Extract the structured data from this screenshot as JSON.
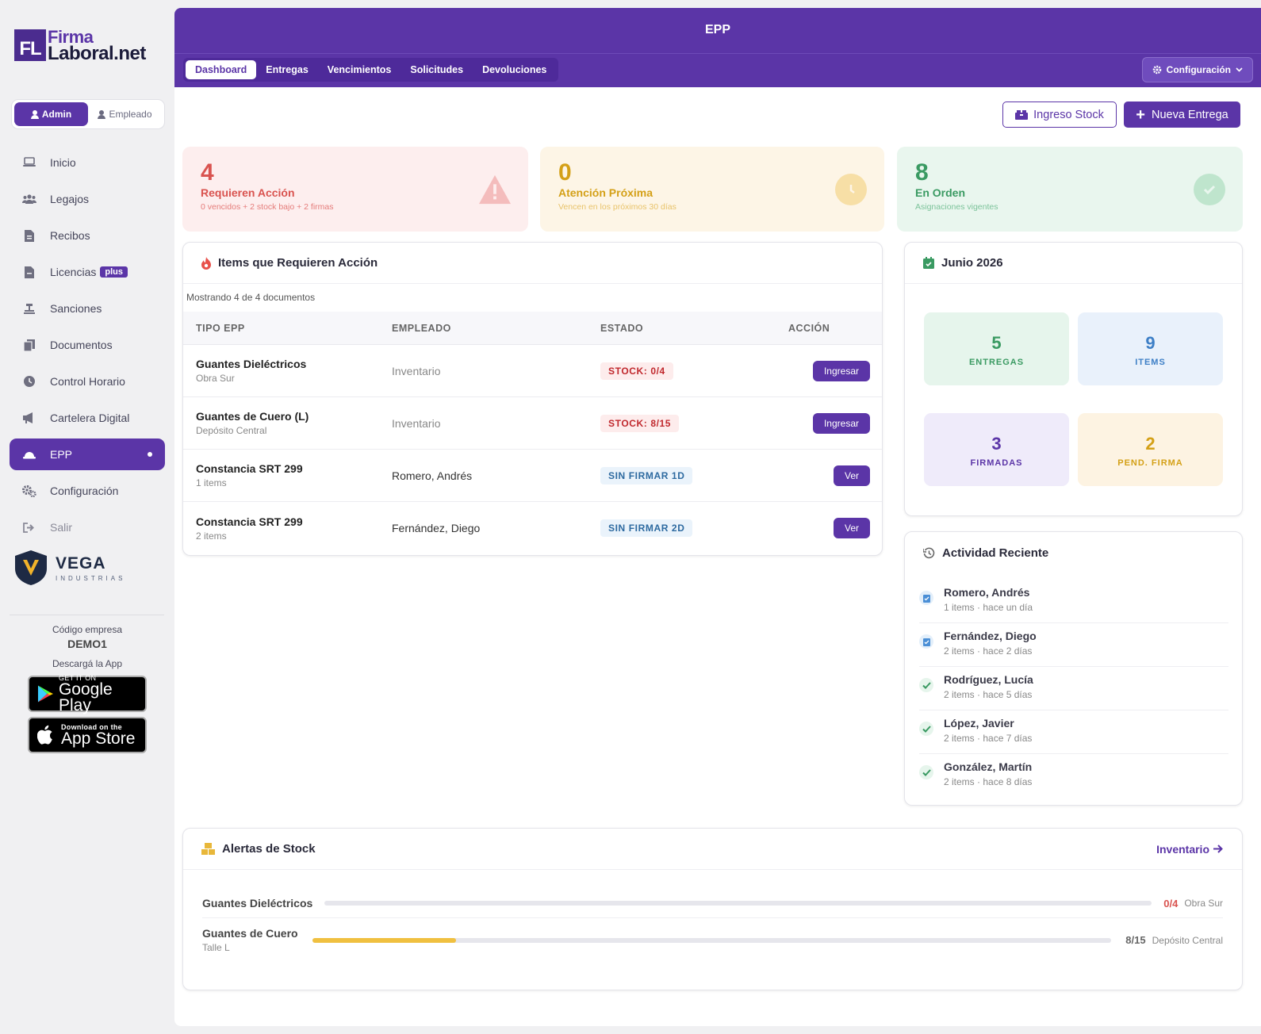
{
  "brand": {
    "mark": "FL",
    "line1": "Firma",
    "line2": "Laboral.net"
  },
  "roles": {
    "admin": "Admin",
    "empleado": "Empleado"
  },
  "nav": [
    {
      "label": "Inicio",
      "icon": "laptop-icon"
    },
    {
      "label": "Legajos",
      "icon": "users-icon"
    },
    {
      "label": "Recibos",
      "icon": "receipt-icon"
    },
    {
      "label": "Licencias",
      "icon": "document-icon",
      "badge": "plus"
    },
    {
      "label": "Sanciones",
      "icon": "gavel-icon"
    },
    {
      "label": "Documentos",
      "icon": "documents-icon"
    },
    {
      "label": "Control Horario",
      "icon": "clock-icon"
    },
    {
      "label": "Cartelera Digital",
      "icon": "megaphone-icon"
    },
    {
      "label": "EPP",
      "icon": "hardhat-icon",
      "active": true
    },
    {
      "label": "Configuración",
      "icon": "gears-icon"
    },
    {
      "label": "Salir",
      "icon": "logout-icon"
    }
  ],
  "company_logo": {
    "name": "VEGA",
    "sub": "INDUSTRIAS"
  },
  "company": {
    "label": "Código empresa",
    "code": "DEMO1",
    "download": "Descargá la App"
  },
  "stores": {
    "google_small": "GET IT ON",
    "google_big": "Google Play",
    "apple_small": "Download on the",
    "apple_big": "App Store"
  },
  "header": {
    "title": "EPP",
    "tabs": [
      "Dashboard",
      "Entregas",
      "Vencimientos",
      "Solicitudes",
      "Devoluciones"
    ],
    "active_tab": "Dashboard",
    "config": "Configuración"
  },
  "actions": {
    "stock": "Ingreso Stock",
    "new": "Nueva Entrega"
  },
  "kpis": [
    {
      "num": "4",
      "label": "Requieren Acción",
      "sub": "0 vencidos + 2 stock bajo + 2 firmas",
      "color": "#d9534f"
    },
    {
      "num": "0",
      "label": "Atención Próxima",
      "sub": "Vencen en los próximos 30 días",
      "color": "#d4a017"
    },
    {
      "num": "8",
      "label": "En Orden",
      "sub": "Asignaciones vigentes",
      "color": "#3a9a62"
    }
  ],
  "action_table": {
    "title": "Items que Requieren Acción",
    "showing": "Mostrando 4 de 4 documentos",
    "headers": [
      "TIPO EPP",
      "EMPLEADO",
      "ESTADO",
      "ACCIÓN"
    ],
    "rows": [
      {
        "name": "Guantes Dieléctricos",
        "loc": "Obra Sur",
        "emp": "Inventario",
        "status": "STOCK: 0/4",
        "action": "Ingresar"
      },
      {
        "name": "Guantes de Cuero (L)",
        "loc": "Depósito Central",
        "emp": "Inventario",
        "status": "STOCK: 8/15",
        "action": "Ingresar"
      },
      {
        "name": "Constancia SRT 299",
        "loc": "1 items",
        "emp": "Romero, Andrés",
        "status": "SIN FIRMAR 1D",
        "action": "Ver"
      },
      {
        "name": "Constancia SRT 299",
        "loc": "2 items",
        "emp": "Fernández, Diego",
        "status": "SIN FIRMAR 2D",
        "action": "Ver"
      }
    ]
  },
  "calendar": {
    "title": "Junio 2026",
    "tiles": [
      {
        "n": "5",
        "t": "ENTREGAS"
      },
      {
        "n": "9",
        "t": "ITEMS"
      },
      {
        "n": "3",
        "t": "FIRMADAS"
      },
      {
        "n": "2",
        "t": "PEND. FIRMA"
      }
    ]
  },
  "activity": {
    "title": "Actividad Reciente",
    "items": [
      {
        "name": "Romero, Andrés",
        "meta": "1 items · hace un día",
        "kind": "clipboard"
      },
      {
        "name": "Fernández, Diego",
        "meta": "2 items · hace 2 días",
        "kind": "clipboard"
      },
      {
        "name": "Rodríguez, Lucía",
        "meta": "2 items · hace 5 días",
        "kind": "check"
      },
      {
        "name": "López, Javier",
        "meta": "2 items · hace 7 días",
        "kind": "check"
      },
      {
        "name": "González, Martín",
        "meta": "2 items · hace 8 días",
        "kind": "check"
      }
    ]
  },
  "stock_alerts": {
    "title": "Alertas de Stock",
    "link": "Inventario",
    "rows": [
      {
        "name": "Guantes Dieléctricos",
        "sub": "",
        "count": "0/4",
        "place": "Obra Sur",
        "level": 0.0
      },
      {
        "name": "Guantes de Cuero",
        "sub": "Talle L",
        "count": "8/15",
        "place": "Depósito Central",
        "level": 0.18
      }
    ]
  }
}
